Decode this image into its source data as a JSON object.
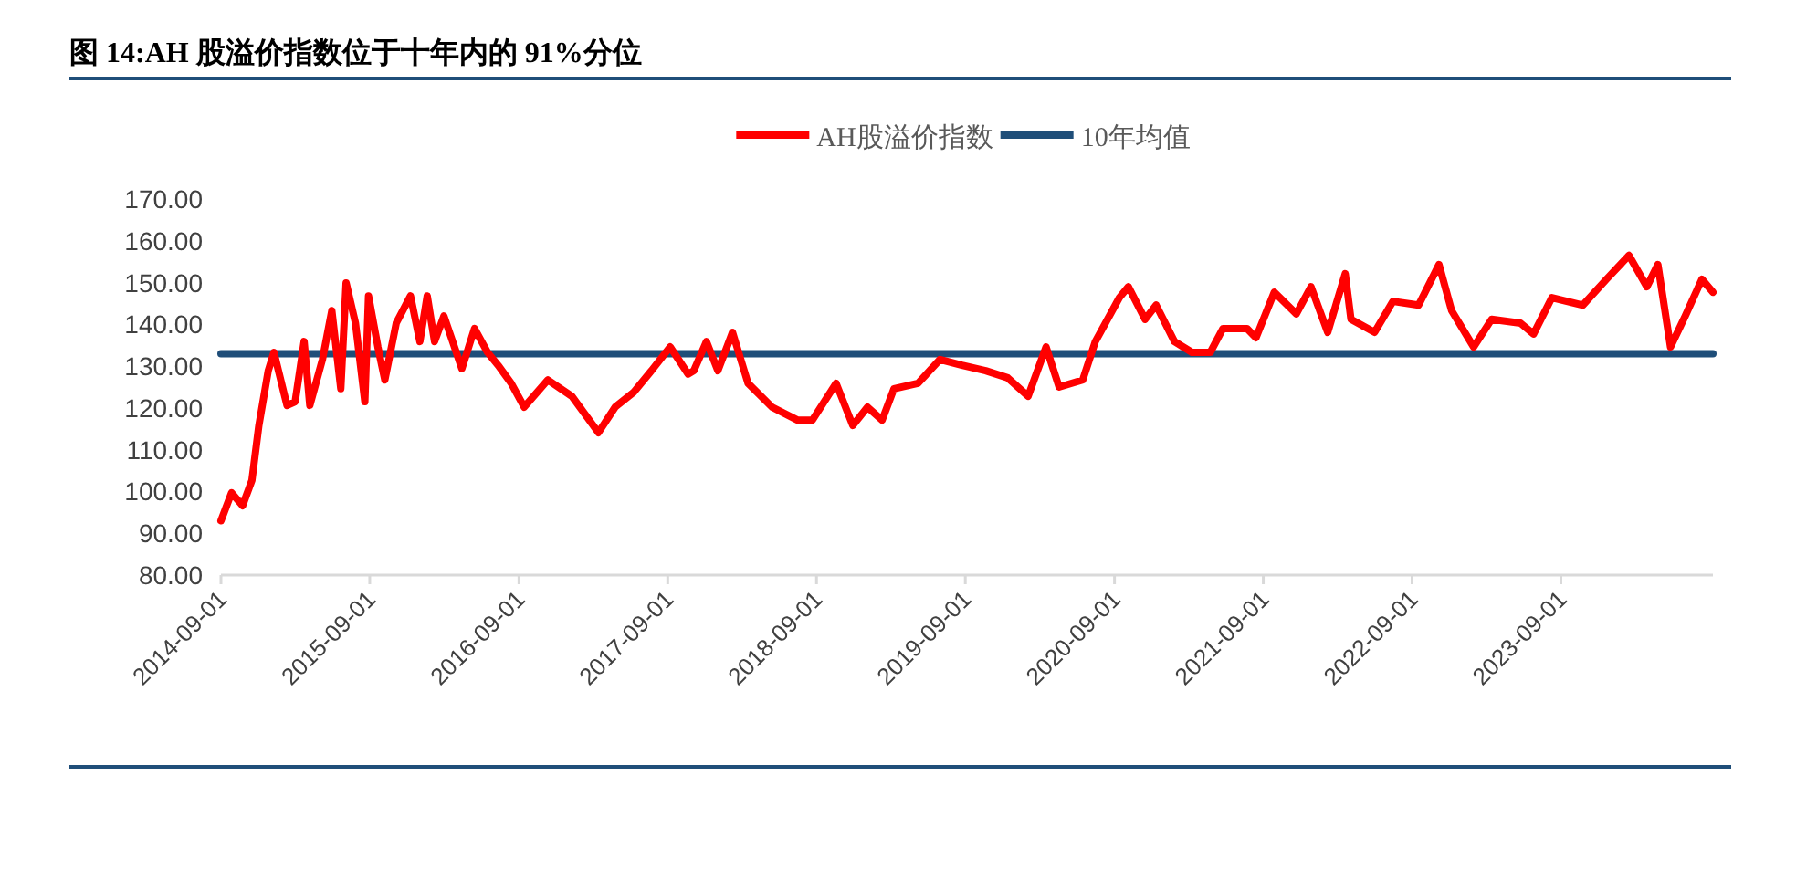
{
  "chart_data": {
    "type": "line",
    "title": "图 14:AH 股溢价指数位于十年内的 91%分位",
    "xlim": [
      "2014-09-01",
      "2024-09-08"
    ],
    "ylim": [
      80,
      170
    ],
    "xticks": [
      {
        "value": "2014-09-01",
        "label": "2014-09-01"
      },
      {
        "value": "2015-09-01",
        "label": "2015-09-01"
      },
      {
        "value": "2016-09-01",
        "label": "2016-09-01"
      },
      {
        "value": "2017-09-01",
        "label": "2017-09-01"
      },
      {
        "value": "2018-09-01",
        "label": "2018-09-01"
      },
      {
        "value": "2019-09-01",
        "label": "2019-09-01"
      },
      {
        "value": "2020-09-01",
        "label": "2020-09-01"
      },
      {
        "value": "2021-09-01",
        "label": "2021-09-01"
      },
      {
        "value": "2022-09-01",
        "label": "2022-09-01"
      },
      {
        "value": "2023-09-01",
        "label": "2023-09-01"
      }
    ],
    "yticks": [
      {
        "value": 80,
        "label": "80.00"
      },
      {
        "value": 90,
        "label": "90.00"
      },
      {
        "value": 100,
        "label": "100.00"
      },
      {
        "value": 110,
        "label": "110.00"
      },
      {
        "value": 120,
        "label": "120.00"
      },
      {
        "value": 130,
        "label": "130.00"
      },
      {
        "value": 140,
        "label": "140.00"
      },
      {
        "value": 150,
        "label": "150.00"
      },
      {
        "value": 160,
        "label": "160.00"
      },
      {
        "value": 170,
        "label": "170.00"
      }
    ],
    "grid": false,
    "legend": "top",
    "series": [
      {
        "name": "AH股溢价指数",
        "color": "#ff0000",
        "x": [
          "2014-09-01",
          "2014-09-27",
          "2014-10-24",
          "2014-11-16",
          "2014-12-03",
          "2014-12-26",
          "2015-01-09",
          "2015-02-10",
          "2015-03-02",
          "2015-03-24",
          "2015-04-07",
          "2015-05-08",
          "2015-05-31",
          "2015-06-22",
          "2015-07-05",
          "2015-07-28",
          "2015-08-20",
          "2015-08-29",
          "2015-09-21",
          "2015-10-08",
          "2015-11-05",
          "2015-12-10",
          "2016-01-02",
          "2016-01-20",
          "2016-02-07",
          "2016-03-01",
          "2016-04-14",
          "2016-05-15",
          "2016-06-16",
          "2016-07-12",
          "2016-08-13",
          "2016-09-14",
          "2016-11-11",
          "2017-01-09",
          "2017-03-15",
          "2017-04-25",
          "2017-06-09",
          "2017-07-23",
          "2017-09-07",
          "2017-10-21",
          "2017-11-04",
          "2017-12-05",
          "2018-01-02",
          "2018-02-07",
          "2018-03-17",
          "2018-05-15",
          "2018-07-16",
          "2018-08-22",
          "2018-10-19",
          "2018-11-29",
          "2019-01-04",
          "2019-02-09",
          "2019-03-10",
          "2019-05-08",
          "2019-07-01",
          "2019-08-24",
          "2019-10-21",
          "2019-12-14",
          "2020-02-02",
          "2020-03-17",
          "2020-04-18",
          "2020-06-15",
          "2020-07-16",
          "2020-09-13",
          "2020-10-05",
          "2020-11-15",
          "2020-12-12",
          "2021-01-26",
          "2021-03-10",
          "2021-04-24",
          "2021-05-25",
          "2021-07-23",
          "2021-08-14",
          "2021-09-28",
          "2021-11-21",
          "2021-12-27",
          "2022-02-06",
          "2022-03-21",
          "2022-04-04",
          "2022-06-01",
          "2022-07-16",
          "2022-09-17",
          "2022-11-06",
          "2022-12-07",
          "2023-01-30",
          "2023-03-15",
          "2023-05-25",
          "2023-06-26",
          "2023-08-10",
          "2023-10-25",
          "2023-12-22",
          "2024-02-15",
          "2024-03-30",
          "2024-04-26",
          "2024-05-27",
          "2024-07-02",
          "2024-08-12",
          "2024-09-08"
        ],
        "values": [
          93,
          99.7,
          96.6,
          102.7,
          115.8,
          128.9,
          133.3,
          120.6,
          121.5,
          135.9,
          120.6,
          131.6,
          143.3,
          124.6,
          149.9,
          140.3,
          121.5,
          146.8,
          134.6,
          126.7,
          140.3,
          146.8,
          135.9,
          146.8,
          135.9,
          142,
          129.4,
          139,
          133.3,
          130.2,
          125.9,
          120.2,
          126.7,
          122.8,
          114.1,
          120.2,
          123.7,
          128.9,
          134.6,
          128.1,
          128.9,
          135.9,
          128.9,
          138.1,
          125.9,
          120.2,
          117.1,
          117.1,
          125.9,
          115.8,
          120.2,
          117.1,
          124.6,
          125.9,
          131.6,
          130.2,
          128.9,
          127.2,
          122.8,
          134.6,
          125,
          126.7,
          135.9,
          146.4,
          149,
          141.2,
          144.6,
          135.9,
          133.3,
          133.3,
          139,
          139,
          136.8,
          147.7,
          142.5,
          149,
          138.1,
          152.1,
          141.2,
          138.1,
          145.5,
          144.6,
          154.3,
          143.3,
          134.6,
          141.2,
          140.3,
          137.7,
          146.4,
          144.6,
          150.8,
          156.5,
          149,
          154.3,
          134.6,
          142,
          150.8,
          147.7
        ]
      },
      {
        "name": "10年均值",
        "color": "#1f4e79",
        "x": [
          "2014-09-01",
          "2024-09-08"
        ],
        "values": [
          133,
          133
        ]
      }
    ]
  }
}
